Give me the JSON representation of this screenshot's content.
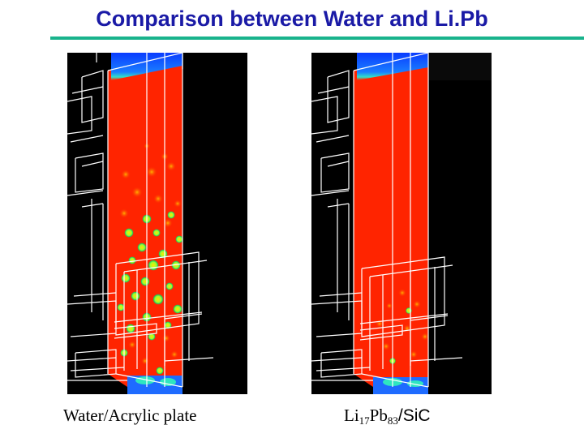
{
  "slide": {
    "title": "Comparison between Water and Li.Pb"
  },
  "colors": {
    "title": "#1a1aa6",
    "title_rule": "#19b38c",
    "background": "#000000",
    "fluid_main": "#ff2400",
    "inflow_top": "#0a3cff",
    "wire_frame": "#ffffff",
    "bubble_ring": "#2ee66a"
  },
  "panels": [
    {
      "caption": "Water/Acrylic plate"
    },
    {
      "caption_parts": [
        "Li",
        "17",
        "Pb",
        "83",
        "/SiC"
      ]
    }
  ]
}
